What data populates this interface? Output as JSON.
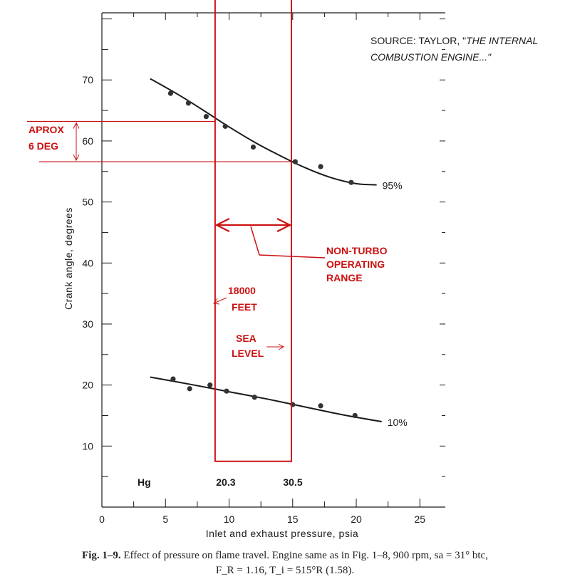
{
  "chart_data": {
    "type": "scatter",
    "xlabel": "Inlet and exhaust pressure, psia",
    "ylabel": "Crank angle, degrees",
    "xlim": [
      0,
      27
    ],
    "ylim": [
      0,
      81
    ],
    "x_ticks": [
      "0",
      "5",
      "10",
      "15",
      "20",
      "25"
    ],
    "y_ticks": [
      "10",
      "20",
      "30",
      "40",
      "50",
      "60",
      "70"
    ],
    "grid": false,
    "series": [
      {
        "name": "95%",
        "points": [
          [
            5.4,
            67.8
          ],
          [
            6.8,
            66.2
          ],
          [
            8.2,
            64.0
          ],
          [
            9.7,
            62.4
          ],
          [
            11.9,
            59.0
          ],
          [
            15.2,
            56.6
          ],
          [
            17.2,
            55.8
          ],
          [
            19.6,
            53.2
          ]
        ],
        "curve": [
          [
            3.8,
            70.2
          ],
          [
            6.0,
            67.6
          ],
          [
            8.0,
            65.0
          ],
          [
            10.0,
            62.3
          ],
          [
            12.0,
            59.8
          ],
          [
            14.0,
            57.6
          ],
          [
            16.0,
            55.6
          ],
          [
            18.0,
            54.0
          ],
          [
            20.0,
            53.0
          ],
          [
            21.6,
            52.8
          ]
        ]
      },
      {
        "name": "10%",
        "points": [
          [
            5.6,
            21.0
          ],
          [
            6.9,
            19.4
          ],
          [
            8.5,
            20.0
          ],
          [
            9.8,
            19.0
          ],
          [
            12.0,
            18.0
          ],
          [
            15.0,
            16.8
          ],
          [
            17.2,
            16.6
          ],
          [
            19.9,
            15.0
          ]
        ],
        "curve": [
          [
            3.8,
            21.3
          ],
          [
            7.0,
            20.1
          ],
          [
            10.0,
            18.9
          ],
          [
            13.0,
            17.7
          ],
          [
            16.0,
            16.4
          ],
          [
            19.0,
            15.1
          ],
          [
            22.0,
            14.0
          ]
        ]
      }
    ],
    "annotations": {
      "source": "SOURCE: TAYLOR, \"",
      "source_italic": "THE INTERNAL",
      "source_line2": "COMBUSTION ENGINE...\"",
      "aprox_line1": "APROX",
      "aprox_line2": "6 DEG",
      "non_turbo_1": "NON-TURBO",
      "non_turbo_2": "OPERATING",
      "non_turbo_3": "RANGE",
      "alt_1": "18000",
      "alt_2": "FEET",
      "sea_1": "SEA",
      "sea_2": "LEVEL",
      "hg": "Hg",
      "hg_low": "20.3",
      "hg_high": "30.5",
      "range_x": [
        8.9,
        14.9
      ],
      "range_y": [
        7.5,
        88.0
      ],
      "aprox_y": [
        63.2,
        56.6
      ]
    },
    "colors": {
      "ink": "#1a1a1a",
      "annotation": "#cc1111"
    }
  },
  "caption": {
    "line1_bold": "Fig. 1–9.",
    "line1_rest": " Effect of pressure on flame travel. Engine same as in Fig. 1–8, 900 rpm, sa = 31° btc,",
    "line2": "F_R = 1.16, T_i = 515°R (1.58)."
  }
}
